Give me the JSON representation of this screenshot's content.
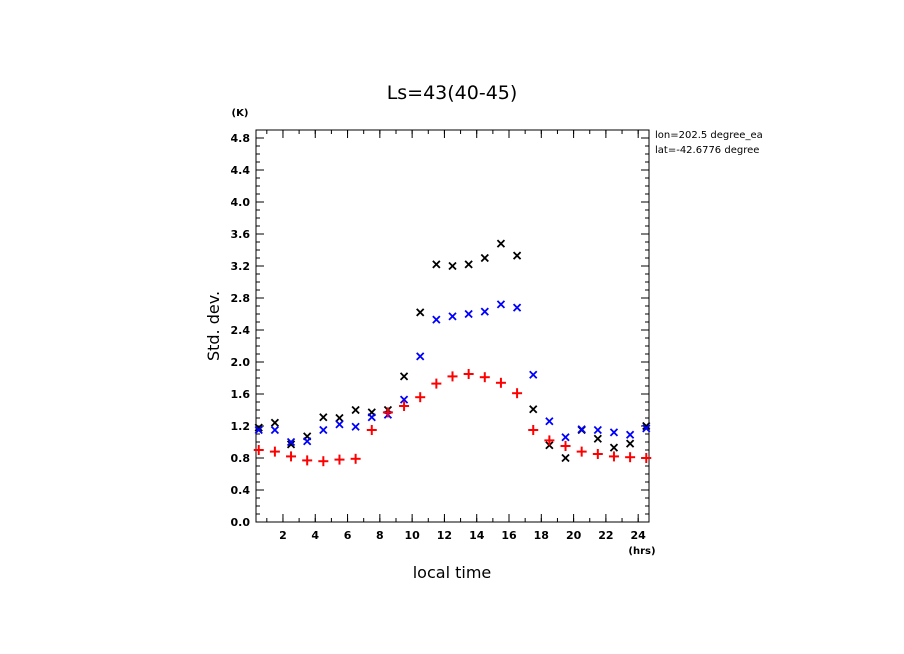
{
  "chart_data": {
    "type": "scatter",
    "title": "Ls=43(40-45)",
    "xlabel": "local time",
    "ylabel": "Std. dev.",
    "x_unit": "(hrs)",
    "y_unit": "(K)",
    "annotations": [
      "lon=202.5 degree_ea",
      "lat=-42.6776 degree"
    ],
    "xlim": [
      0.33,
      24.67
    ],
    "ylim": [
      0,
      4.9
    ],
    "xticks": [
      2,
      4,
      6,
      8,
      10,
      12,
      14,
      16,
      18,
      20,
      22,
      24
    ],
    "yticks": [
      0.0,
      0.4,
      0.8,
      1.2,
      1.6,
      2.0,
      2.4,
      2.8,
      3.2,
      3.6,
      4.0,
      4.4,
      4.8
    ],
    "grid": false,
    "x": [
      0.5,
      1.5,
      2.5,
      3.5,
      4.5,
      5.5,
      6.5,
      7.5,
      8.5,
      9.5,
      10.5,
      11.5,
      12.5,
      13.5,
      14.5,
      15.5,
      16.5,
      17.5,
      18.5,
      19.5,
      20.5,
      21.5,
      22.5,
      23.5,
      24.5
    ],
    "series": [
      {
        "color": "#000000",
        "marker": "x",
        "x": [
          0.5,
          1.5,
          2.5,
          3.5,
          4.5,
          5.5,
          6.5,
          7.5,
          8.5,
          9.5,
          10.5,
          11.5,
          12.5,
          13.5,
          14.5,
          15.5,
          16.5,
          17.5,
          18.5,
          19.5,
          20.5,
          21.5,
          22.5,
          23.5,
          24.5
        ],
        "values": [
          1.18,
          1.24,
          0.97,
          1.07,
          1.31,
          1.3,
          1.4,
          1.37,
          1.4,
          1.82,
          2.62,
          3.22,
          3.2,
          3.22,
          3.3,
          3.48,
          3.33,
          1.41,
          0.96,
          0.8,
          1.15,
          1.04,
          0.93,
          0.98,
          1.2
        ]
      },
      {
        "color": "#0000ff",
        "marker": "x",
        "x": [
          0.5,
          1.5,
          2.5,
          3.5,
          4.5,
          5.5,
          6.5,
          7.5,
          8.5,
          9.5,
          10.5,
          11.5,
          12.5,
          13.5,
          14.5,
          15.5,
          16.5,
          17.5,
          18.5,
          19.5,
          20.5,
          21.5,
          22.5,
          23.5,
          24.5
        ],
        "values": [
          1.15,
          1.15,
          1.0,
          1.01,
          1.15,
          1.22,
          1.19,
          1.31,
          1.34,
          1.53,
          2.07,
          2.53,
          2.57,
          2.6,
          2.63,
          2.72,
          2.68,
          1.84,
          1.26,
          1.06,
          1.16,
          1.15,
          1.12,
          1.09,
          1.17
        ]
      },
      {
        "color": "#ff0000",
        "marker": "+",
        "x": [
          0.5,
          1.5,
          2.5,
          3.5,
          4.5,
          5.5,
          6.5,
          7.5,
          8.5,
          9.5,
          10.5,
          11.5,
          12.5,
          13.5,
          14.5,
          15.5,
          16.5,
          17.5,
          18.5,
          19.5,
          20.5,
          21.5,
          22.5,
          23.5,
          24.5
        ],
        "values": [
          0.9,
          0.88,
          0.82,
          0.77,
          0.76,
          0.78,
          0.79,
          1.15,
          1.37,
          1.45,
          1.56,
          1.73,
          1.82,
          1.85,
          1.81,
          1.74,
          1.61,
          1.15,
          1.02,
          0.95,
          0.88,
          0.85,
          0.82,
          0.81,
          0.8
        ]
      }
    ]
  }
}
